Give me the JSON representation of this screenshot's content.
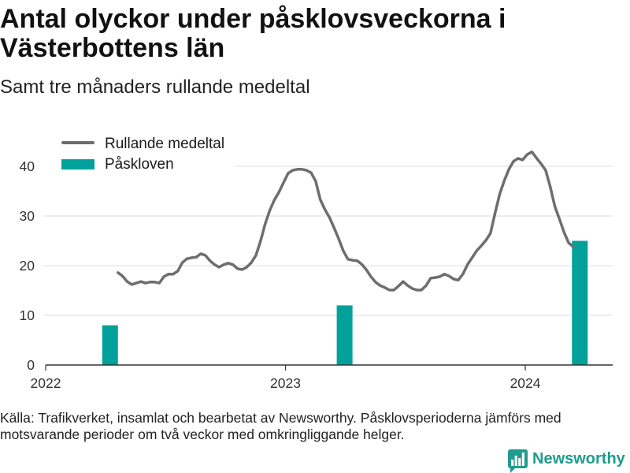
{
  "chart_data": {
    "type": "line",
    "title": "Antal olyckor under påsklovsveckorna i Västerbottens län",
    "subtitle": "Samt tre månaders rullande medeltal",
    "xlim": [
      "2022-01-01",
      "2024-05-13"
    ],
    "ylim": [
      0,
      45
    ],
    "yticks": [
      0,
      10,
      20,
      30,
      40
    ],
    "xticks": [
      "2022",
      "2023",
      "2024"
    ],
    "grid": "horizontal",
    "legend": "top-left",
    "series": [
      {
        "name": "Rullande medeltal",
        "type": "line",
        "color": "#6d6e72",
        "x": [
          "2022-04-21",
          "2022-04-28",
          "2022-05-05",
          "2022-05-12",
          "2022-05-19",
          "2022-05-26",
          "2022-06-02",
          "2022-06-09",
          "2022-06-16",
          "2022-06-23",
          "2022-06-30",
          "2022-07-07",
          "2022-07-14",
          "2022-07-21",
          "2022-07-28",
          "2022-08-04",
          "2022-08-11",
          "2022-08-18",
          "2022-08-25",
          "2022-09-01",
          "2022-09-08",
          "2022-09-15",
          "2022-09-22",
          "2022-09-29",
          "2022-10-06",
          "2022-10-13",
          "2022-10-20",
          "2022-10-27",
          "2022-11-03",
          "2022-11-10",
          "2022-11-17",
          "2022-11-24",
          "2022-12-01",
          "2022-12-08",
          "2022-12-15",
          "2022-12-22",
          "2022-12-29",
          "2023-01-05",
          "2023-01-12",
          "2023-01-19",
          "2023-01-26",
          "2023-02-02",
          "2023-02-09",
          "2023-02-16",
          "2023-02-23",
          "2023-03-02",
          "2023-03-09",
          "2023-03-16",
          "2023-03-23",
          "2023-03-30",
          "2023-04-06",
          "2023-04-13",
          "2023-04-20",
          "2023-04-27",
          "2023-05-04",
          "2023-05-11",
          "2023-05-18",
          "2023-05-25",
          "2023-06-01",
          "2023-06-08",
          "2023-06-15",
          "2023-06-22",
          "2023-06-29",
          "2023-07-06",
          "2023-07-13",
          "2023-07-20",
          "2023-07-27",
          "2023-08-03",
          "2023-08-10",
          "2023-08-17",
          "2023-08-24",
          "2023-08-31",
          "2023-09-07",
          "2023-09-14",
          "2023-09-21",
          "2023-09-28",
          "2023-10-05",
          "2023-10-12",
          "2023-10-19",
          "2023-10-26",
          "2023-11-02",
          "2023-11-09",
          "2023-11-16",
          "2023-11-23",
          "2023-11-30",
          "2023-12-07",
          "2023-12-14",
          "2023-12-21",
          "2023-12-28",
          "2024-01-04",
          "2024-01-11",
          "2024-01-18",
          "2024-01-25",
          "2024-02-01",
          "2024-02-08",
          "2024-02-15",
          "2024-02-22",
          "2024-02-29",
          "2024-03-07",
          "2024-03-14"
        ],
        "values": [
          18.6,
          17.9,
          16.8,
          16.2,
          16.5,
          16.8,
          16.5,
          16.7,
          16.7,
          16.5,
          17.8,
          18.3,
          18.3,
          18.9,
          20.6,
          21.4,
          21.6,
          21.7,
          22.4,
          22.1,
          21.0,
          20.2,
          19.7,
          20.2,
          20.5,
          20.2,
          19.4,
          19.2,
          19.7,
          20.6,
          22.1,
          24.9,
          28.4,
          31.1,
          33.2,
          34.8,
          36.7,
          38.6,
          39.2,
          39.4,
          39.4,
          39.2,
          38.7,
          37.0,
          33.3,
          31.3,
          29.7,
          27.6,
          25.4,
          23.0,
          21.3,
          21.1,
          21.0,
          20.3,
          19.2,
          17.8,
          16.7,
          16.0,
          15.6,
          15.1,
          15.1,
          15.9,
          16.8,
          16.0,
          15.4,
          15.1,
          15.1,
          16.0,
          17.5,
          17.6,
          17.8,
          18.3,
          17.9,
          17.3,
          17.1,
          18.3,
          20.2,
          21.6,
          23.0,
          24.0,
          25.1,
          26.5,
          30.6,
          34.4,
          37.1,
          39.4,
          41.0,
          41.6,
          41.3,
          42.4,
          42.9,
          41.7,
          40.5,
          39.2,
          35.9,
          31.9,
          29.4,
          26.7,
          24.6,
          23.8
        ]
      },
      {
        "name": "Påskloven",
        "type": "bar",
        "color": "#00a19a",
        "x": [
          "2022-04-09",
          "2023-04-01",
          "2024-03-24"
        ],
        "values": [
          8,
          12,
          25
        ]
      }
    ]
  },
  "footer": {
    "source": "Källa: Trafikverket, insamlat och bearbetat av Newsworthy. Påsklovsperioderna jämförs med motsvarande perioder om två veckor med omkringliggande helger.",
    "logo_text": "Newsworthy",
    "logo_icon": "newsworthy-logo-icon",
    "brand_color": "#1e9c8f"
  }
}
